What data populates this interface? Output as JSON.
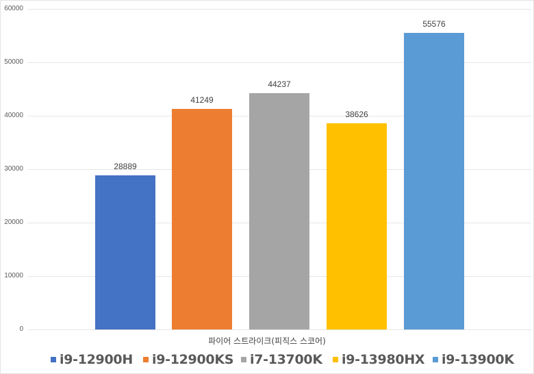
{
  "chart_data": {
    "type": "bar",
    "title": "",
    "xlabel": "파이어 스트라이크(피직스 스코어)",
    "ylabel": "",
    "categories": [
      "파이어 스트라이크(피직스 스코어)"
    ],
    "series": [
      {
        "name": "i9-12900H",
        "values": [
          28889
        ],
        "color": "#4472C4"
      },
      {
        "name": "i9-12900KS",
        "values": [
          41249
        ],
        "color": "#ED7D31"
      },
      {
        "name": "i7-13700K",
        "values": [
          44237
        ],
        "color": "#A5A5A5"
      },
      {
        "name": "i9-13980HX",
        "values": [
          38626
        ],
        "color": "#FFC000"
      },
      {
        "name": "i9-13900K",
        "values": [
          55576
        ],
        "color": "#5B9BD5"
      }
    ],
    "ylim": [
      0,
      60000
    ],
    "yticks": [
      0,
      10000,
      20000,
      30000,
      40000,
      50000,
      60000
    ],
    "ytick_labels": [
      "0",
      "10000",
      "20000",
      "30000",
      "40000",
      "50000",
      "60000"
    ],
    "grid": true,
    "legend_position": "bottom",
    "data_labels": [
      "28889",
      "41249",
      "44237",
      "38626",
      "55576"
    ]
  }
}
